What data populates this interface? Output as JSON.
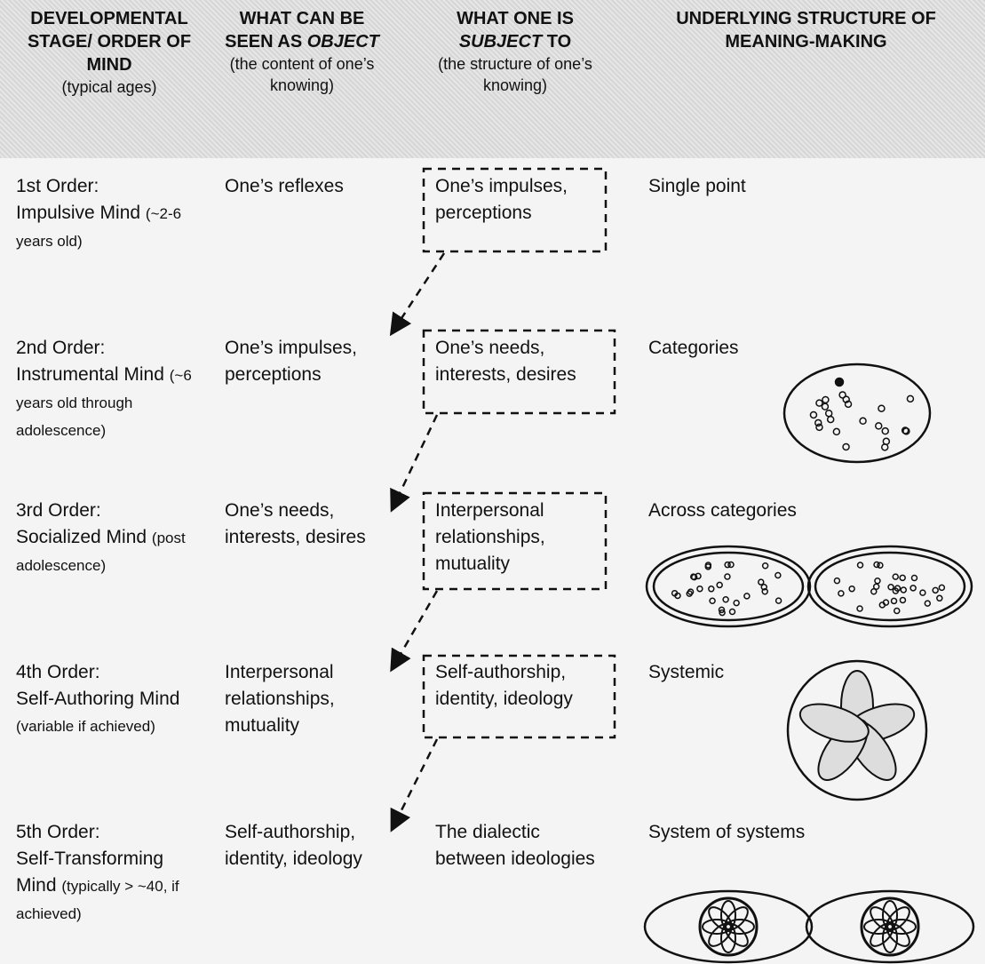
{
  "header": {
    "columns": [
      {
        "title": "DEVELOPMENTAL STAGE/ ORDER OF MIND",
        "note": "(typical ages)"
      },
      {
        "title": "WHAT CAN BE SEEN AS",
        "title_em": "OBJECT",
        "note": "(the content of one’s knowing)"
      },
      {
        "title": "WHAT ONE IS",
        "title_em": "SUBJECT",
        "title_after": "TO",
        "note": "(the structure of one’s knowing)"
      },
      {
        "title": "UNDERLYING STRUCTURE OF MEANING-MAKING"
      }
    ]
  },
  "rows": [
    {
      "order": "1st Order:",
      "mind": "Impulsive Mind",
      "ages": "(~2-6 years old)",
      "object": "One’s reflexes",
      "subject": "One’s impulses, perceptions",
      "structure": "Single point"
    },
    {
      "order": "2nd Order:",
      "mind": "Instrumental Mind",
      "ages": "(~6 years old through adolescence)",
      "object": "One’s impulses, perceptions",
      "subject": "One’s needs, interests, desires",
      "structure": "Categories"
    },
    {
      "order": "3rd Order:",
      "mind": "Socialized Mind",
      "ages": "(post adolescence)",
      "object": "One’s needs, interests, desires",
      "subject": "Interpersonal relationships, mutuality",
      "structure": "Across categories"
    },
    {
      "order": "4th Order:",
      "mind": "Self-Authoring Mind",
      "ages": "(variable if achieved)",
      "object": "Interpersonal relationships, mutuality",
      "subject": "Self-authorship, identity, ideology",
      "structure": "Systemic"
    },
    {
      "order": "5th Order:",
      "mind": "Self-Transforming Mind",
      "ages": "(typically > ~40, if achieved)",
      "object": "Self-authorship, identity, ideology",
      "subject": "The dialectic between ideologies",
      "structure": "System of systems"
    }
  ]
}
